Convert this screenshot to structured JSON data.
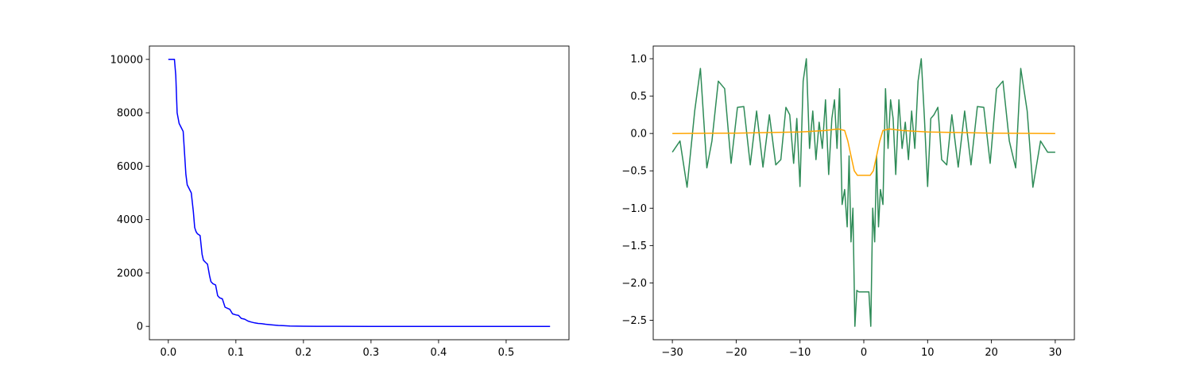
{
  "chart_data": [
    {
      "type": "line",
      "title": "",
      "xlabel": "",
      "ylabel": "",
      "xlim": [
        -0.028,
        0.593
      ],
      "ylim": [
        -500,
        10500
      ],
      "grid": false,
      "x_ticks": [
        0.0,
        0.1,
        0.2,
        0.3,
        0.4,
        0.5
      ],
      "x_tick_labels": [
        "0.0",
        "0.1",
        "0.2",
        "0.3",
        "0.4",
        "0.5"
      ],
      "y_ticks": [
        0,
        2000,
        4000,
        6000,
        8000,
        10000
      ],
      "y_tick_labels": [
        "0",
        "2000",
        "4000",
        "6000",
        "8000",
        "10000"
      ],
      "series": [
        {
          "color": "#0000ff",
          "x": [
            0.0,
            0.009,
            0.011,
            0.013,
            0.016,
            0.019,
            0.022,
            0.024,
            0.026,
            0.028,
            0.031,
            0.034,
            0.037,
            0.039,
            0.041,
            0.043,
            0.047,
            0.05,
            0.052,
            0.055,
            0.058,
            0.061,
            0.063,
            0.066,
            0.07,
            0.073,
            0.076,
            0.08,
            0.084,
            0.088,
            0.091,
            0.095,
            0.1,
            0.104,
            0.108,
            0.113,
            0.118,
            0.123,
            0.128,
            0.133,
            0.138,
            0.144,
            0.15,
            0.156,
            0.163,
            0.17,
            0.18,
            0.2,
            0.22,
            0.25,
            0.3,
            0.4,
            0.5,
            0.565
          ],
          "y": [
            10000,
            10000,
            9400,
            8000,
            7600,
            7450,
            7300,
            6500,
            5700,
            5300,
            5150,
            5000,
            4300,
            3700,
            3550,
            3470,
            3400,
            2700,
            2480,
            2400,
            2330,
            1900,
            1680,
            1600,
            1550,
            1150,
            1070,
            1030,
            720,
            670,
            640,
            470,
            430,
            410,
            300,
            270,
            200,
            160,
            130,
            110,
            100,
            80,
            65,
            50,
            35,
            25,
            15,
            6,
            3,
            1,
            0,
            0,
            0,
            0
          ]
        }
      ]
    },
    {
      "type": "line",
      "title": "",
      "xlabel": "",
      "ylabel": "",
      "xlim": [
        -33.0,
        33.0
      ],
      "ylim": [
        -2.76,
        1.17
      ],
      "grid": false,
      "x_ticks": [
        -30,
        -20,
        -10,
        0,
        10,
        20,
        30
      ],
      "x_tick_labels": [
        "−30",
        "−20",
        "−10",
        "0",
        "10",
        "20",
        "30"
      ],
      "y_ticks": [
        -2.5,
        -2.0,
        -1.5,
        -1.0,
        -0.5,
        0.0,
        0.5,
        1.0
      ],
      "y_tick_labels": [
        "−2.5",
        "−2.0",
        "−1.5",
        "−1.0",
        "−0.5",
        "0.0",
        "0.5",
        "1.0"
      ],
      "series": [
        {
          "color": "#2e8b57",
          "x": [
            -30,
            -28.8,
            -27.7,
            -26.5,
            -25.6,
            -24.6,
            -23.8,
            -22.8,
            -21.8,
            -20.8,
            -19.8,
            -18.8,
            -17.8,
            -16.8,
            -15.8,
            -14.8,
            -13.8,
            -13.0,
            -12.2,
            -11.6,
            -11.0,
            -10.5,
            -10.0,
            -9.5,
            -9.0,
            -8.5,
            -8.0,
            -7.5,
            -7.0,
            -6.5,
            -6.0,
            -5.5,
            -5.0,
            -4.6,
            -4.2,
            -3.8,
            -3.4,
            -3.0,
            -2.6,
            -2.3,
            -2.0,
            -1.7,
            -1.4,
            -1.1,
            -0.8,
            0.8,
            1.1,
            1.4,
            1.7,
            2.0,
            2.3,
            2.6,
            3.0,
            3.4,
            3.8,
            4.2,
            4.6,
            5.0,
            5.5,
            6.0,
            6.5,
            7.0,
            7.5,
            8.0,
            8.5,
            9.0,
            9.5,
            10.0,
            10.5,
            11.0,
            11.6,
            12.2,
            13.0,
            13.8,
            14.8,
            15.8,
            16.8,
            17.8,
            18.8,
            19.8,
            20.8,
            21.8,
            22.8,
            23.8,
            24.6,
            25.6,
            26.5,
            27.7,
            28.8,
            30
          ],
          "y": [
            -0.25,
            -0.1,
            -0.72,
            0.3,
            0.87,
            -0.46,
            -0.1,
            0.7,
            0.6,
            -0.4,
            0.35,
            0.36,
            -0.42,
            0.3,
            -0.45,
            0.25,
            -0.42,
            -0.35,
            0.35,
            0.25,
            -0.4,
            0.2,
            -0.71,
            0.7,
            1.0,
            -0.2,
            0.3,
            -0.35,
            0.15,
            -0.2,
            0.45,
            -0.55,
            0.2,
            0.45,
            -0.2,
            0.6,
            -0.95,
            -0.75,
            -1.25,
            -0.3,
            -1.45,
            -1.0,
            -2.58,
            -2.1,
            -2.12,
            -2.12,
            -2.58,
            -1.0,
            -1.45,
            -0.3,
            -1.25,
            -0.75,
            -0.95,
            0.6,
            -0.2,
            0.45,
            0.2,
            -0.55,
            0.45,
            -0.2,
            0.15,
            -0.35,
            0.3,
            -0.2,
            0.7,
            1.0,
            0.2,
            -0.71,
            0.2,
            0.25,
            0.35,
            -0.35,
            -0.42,
            0.25,
            -0.45,
            0.3,
            -0.42,
            0.36,
            0.35,
            -0.4,
            0.6,
            0.7,
            -0.1,
            -0.46,
            0.87,
            0.3,
            -0.72,
            -0.1,
            -0.25,
            -0.25
          ]
        },
        {
          "color": "#ffa500",
          "x": [
            -30,
            -20,
            -10,
            -6,
            -4,
            -3,
            -2.5,
            -2,
            -1.5,
            -1,
            1,
            1.5,
            2,
            2.5,
            3,
            4,
            6,
            10,
            20,
            30
          ],
          "y": [
            0.0,
            0.005,
            0.02,
            0.04,
            0.06,
            0.04,
            -0.1,
            -0.3,
            -0.5,
            -0.56,
            -0.56,
            -0.5,
            -0.3,
            -0.1,
            0.04,
            0.06,
            0.04,
            0.02,
            0.005,
            0.0
          ]
        }
      ]
    }
  ]
}
